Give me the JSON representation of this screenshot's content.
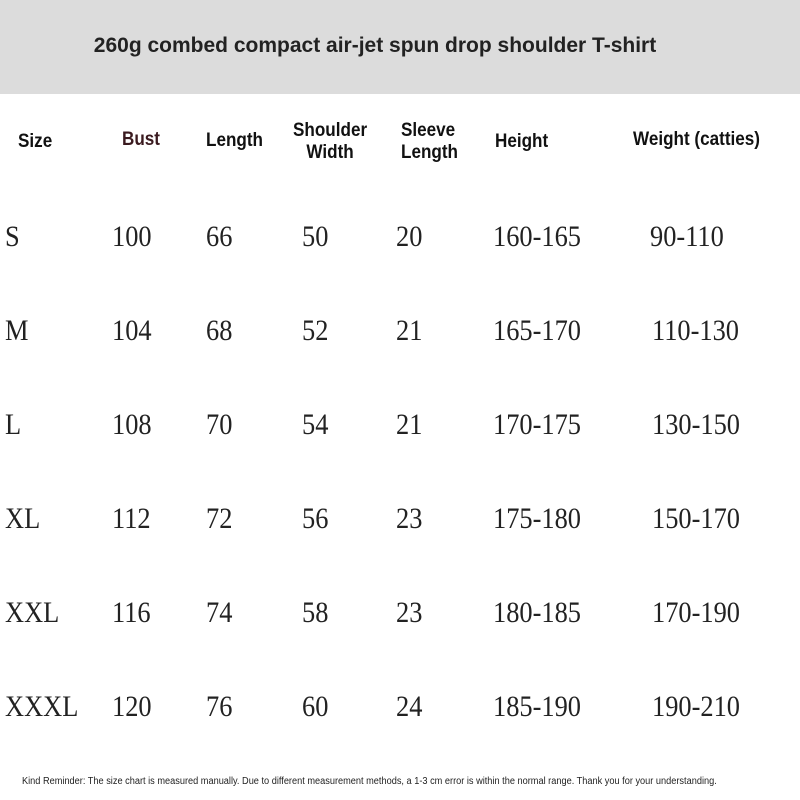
{
  "title": "260g combed compact air-jet spun drop shoulder T-shirt",
  "headers": [
    "Size",
    "Bust",
    "Length",
    "Shoulder Width",
    "Sleeve Length",
    "Height",
    "Weight (catties)"
  ],
  "header_lines": {
    "shoulder": [
      "Shoulder",
      "Width"
    ],
    "sleeve": [
      "Sleeve",
      "Length"
    ]
  },
  "bust_header_color": "#3a1a1f",
  "rows": [
    [
      "S",
      "100",
      "66",
      "50",
      "20",
      "160-165",
      "90-110"
    ],
    [
      "M",
      "104",
      "68",
      "52",
      "21",
      "165-170",
      "110-130"
    ],
    [
      "L",
      "108",
      "70",
      "54",
      "21",
      "170-175",
      "130-150"
    ],
    [
      "XL",
      "112",
      "72",
      "56",
      "23",
      "175-180",
      "150-170"
    ],
    [
      "XXL",
      "116",
      "74",
      "58",
      "23",
      "180-185",
      "170-190"
    ],
    [
      "XXXL",
      "120",
      "76",
      "60",
      "24",
      "185-190",
      "190-210"
    ]
  ],
  "note": "Kind Reminder: The size chart is measured manually. Due to different measurement methods, a 1-3 cm error is within the normal range. Thank you for your understanding."
}
